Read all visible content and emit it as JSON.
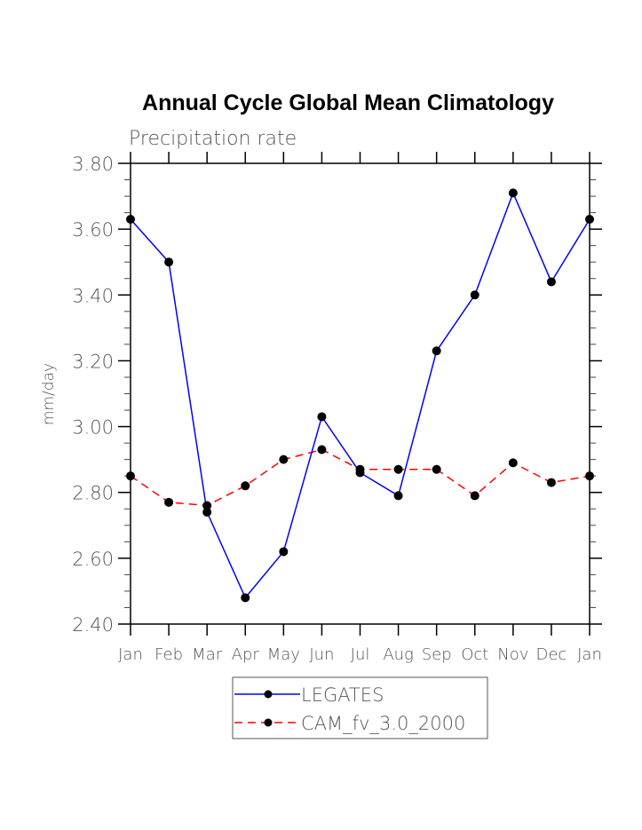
{
  "chart_data": {
    "type": "line",
    "title": "Annual Cycle Global Mean Climatology",
    "subtitle": "Precipitation rate",
    "xlabel": "",
    "ylabel": "mm/day",
    "ylim": [
      2.4,
      3.8
    ],
    "y_ticks": [
      "2.40",
      "2.60",
      "2.80",
      "3.00",
      "3.20",
      "3.40",
      "3.60",
      "3.80"
    ],
    "y_tick_values": [
      2.4,
      2.6,
      2.8,
      3.0,
      3.2,
      3.4,
      3.6,
      3.8
    ],
    "y_minor_step": 0.05,
    "categories": [
      "Jan",
      "Feb",
      "Mar",
      "Apr",
      "May",
      "Jun",
      "Jul",
      "Aug",
      "Sep",
      "Oct",
      "Nov",
      "Dec",
      "Jan"
    ],
    "grid": false,
    "legend_position": "bottom-center",
    "series": [
      {
        "name": "LEGATES",
        "color": "#0000ff",
        "dash": "solid",
        "values": [
          3.63,
          3.5,
          2.74,
          2.48,
          2.62,
          3.03,
          2.86,
          2.79,
          3.23,
          3.4,
          3.71,
          3.44,
          3.63
        ]
      },
      {
        "name": "CAM_fv_3.0_2000",
        "color": "#ff0000",
        "dash": "dashed",
        "values": [
          2.85,
          2.77,
          2.76,
          2.82,
          2.9,
          2.93,
          2.87,
          2.87,
          2.87,
          2.79,
          2.89,
          2.83,
          2.85
        ]
      }
    ]
  }
}
